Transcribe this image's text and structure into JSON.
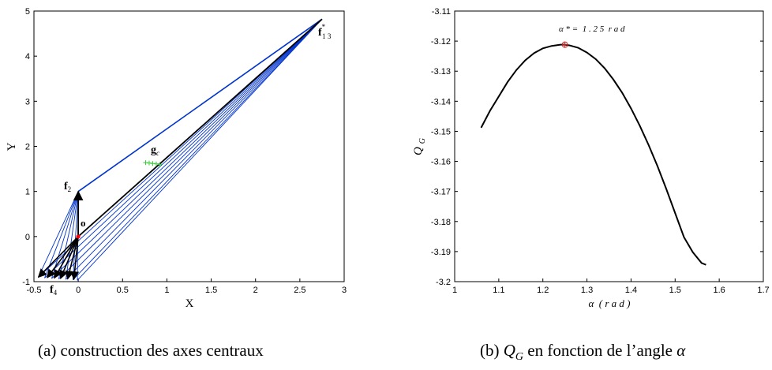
{
  "chart_data": [
    {
      "type": "line",
      "panel": "a",
      "xlabel": "X",
      "ylabel": "Y",
      "xlim": [
        -0.5,
        3
      ],
      "ylim": [
        -1,
        5
      ],
      "xticks": [
        "-0.5",
        "0",
        "0.5",
        "1",
        "1.5",
        "2",
        "2.5",
        "3"
      ],
      "yticks": [
        "-1",
        "0",
        "1",
        "2",
        "3",
        "4",
        "5"
      ],
      "grid": false,
      "points": {
        "o": [
          0,
          0
        ],
        "f2": [
          0,
          1
        ],
        "f13": [
          2.75,
          4.82
        ],
        "gc": [
          0.85,
          1.62
        ]
      },
      "bottom_arrow_tips": [
        [
          -0.45,
          -0.9
        ],
        [
          -0.35,
          -0.91
        ],
        [
          -0.27,
          -0.92
        ],
        [
          -0.2,
          -0.93
        ],
        [
          -0.12,
          -0.94
        ],
        [
          -0.05,
          -0.95
        ]
      ],
      "fan_origins": [
        [
          -0.45,
          -0.9
        ],
        [
          -0.38,
          -0.92
        ],
        [
          -0.3,
          -0.93
        ],
        [
          -0.22,
          -0.94
        ],
        [
          -0.14,
          -0.95
        ],
        [
          -0.06,
          -0.96
        ],
        [
          -0.01,
          -0.97
        ]
      ],
      "green_marks": [
        [
          0.76,
          1.64
        ],
        [
          0.8,
          1.63
        ],
        [
          0.84,
          1.62
        ],
        [
          0.88,
          1.61
        ],
        [
          0.92,
          1.6
        ]
      ],
      "labels": {
        "o": "o",
        "f2": "f",
        "f2_sub": "2",
        "f4": "f",
        "f4_sub": "4",
        "f13": "f",
        "f13_sup": "*",
        "f13_sub": "1 3",
        "gc": "g",
        "gc_sub": "c"
      },
      "colors": {
        "lines": "#0033cc",
        "arrows": "#000000",
        "origin": "#ff0000",
        "marks": "#33cc33"
      }
    },
    {
      "type": "line",
      "panel": "b",
      "xlabel": "α  ( r a d )",
      "ylabel": "Q",
      "ylabel_sub": "G",
      "xlim": [
        1,
        1.7
      ],
      "ylim": [
        -3.2,
        -3.11
      ],
      "xticks": [
        "1",
        "1.1",
        "1.2",
        "1.3",
        "1.4",
        "1.5",
        "1.6",
        "1.7"
      ],
      "yticks": [
        "-3.11",
        "-3.12",
        "-3.13",
        "-3.14",
        "-3.15",
        "-3.16",
        "-3.17",
        "-3.18",
        "-3.19",
        "-3.2"
      ],
      "grid": false,
      "series": [
        {
          "x": [
            1.06,
            1.08,
            1.1,
            1.12,
            1.14,
            1.16,
            1.18,
            1.2,
            1.22,
            1.24,
            1.25,
            1.26,
            1.28,
            1.3,
            1.32,
            1.34,
            1.36,
            1.38,
            1.4,
            1.42,
            1.44,
            1.46,
            1.48,
            1.5,
            1.52,
            1.54,
            1.56,
            1.57
          ],
          "y": [
            -3.1488,
            -3.1432,
            -3.1384,
            -3.1336,
            -3.1296,
            -3.1264,
            -3.124,
            -3.1224,
            -3.1216,
            -3.1212,
            -3.1212,
            -3.1214,
            -3.1222,
            -3.1238,
            -3.126,
            -3.129,
            -3.1328,
            -3.1372,
            -3.1424,
            -3.1482,
            -3.1546,
            -3.1616,
            -3.1692,
            -3.1772,
            -3.1852,
            -3.1902,
            -3.1938,
            -3.1944
          ]
        }
      ],
      "optimum": {
        "x": 1.25,
        "y": -3.1212
      },
      "annotation": "α * =  1 . 2 5  r a d",
      "colors": {
        "curve": "#000000",
        "marker": "#cc2222"
      }
    }
  ],
  "captions": {
    "a": "(a) construction des axes centraux",
    "b_pre": "(b) ",
    "b_q": "Q",
    "b_sub": "G",
    "b_post": " en fonction de l’angle ",
    "b_alpha": "α"
  }
}
